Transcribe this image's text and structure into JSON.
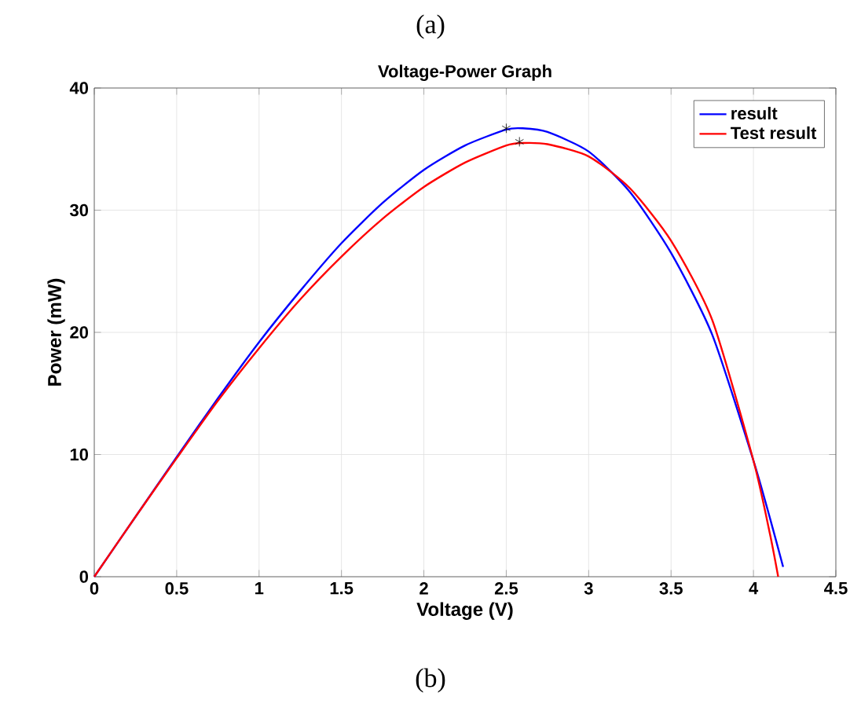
{
  "chart_data": {
    "type": "line",
    "title": "Voltage-Power Graph",
    "xlabel": "Voltage (V)",
    "ylabel": "Power (mW)",
    "annotations": [
      "(a)",
      "(b)"
    ],
    "xlim": [
      0,
      4.5
    ],
    "xticks": [
      0,
      0.5,
      1,
      1.5,
      2,
      2.5,
      3,
      3.5,
      4,
      4.5
    ],
    "ylim": [
      0,
      40
    ],
    "yticks": [
      0,
      10,
      20,
      30,
      40
    ],
    "grid": true,
    "legend": "top right",
    "series": [
      {
        "name": "result",
        "color": "#0000ff",
        "x": [
          0,
          0.25,
          0.5,
          0.75,
          1,
          1.25,
          1.5,
          1.75,
          2,
          2.25,
          2.5,
          2.6,
          2.75,
          3,
          3.25,
          3.5,
          3.75,
          4,
          4.1,
          4.18
        ],
        "values": [
          0,
          4.9,
          9.8,
          14.6,
          19.2,
          23.4,
          27.3,
          30.6,
          33.3,
          35.3,
          36.6,
          36.7,
          36.4,
          34.8,
          31.5,
          26.5,
          19.8,
          9.5,
          4.8,
          0.8
        ]
      },
      {
        "name": "Test result",
        "color": "#ff0000",
        "x": [
          0,
          0.25,
          0.5,
          0.75,
          1,
          1.25,
          1.5,
          1.75,
          2,
          2.25,
          2.5,
          2.6,
          2.75,
          3,
          3.25,
          3.5,
          3.75,
          4,
          4.1,
          4.15
        ],
        "values": [
          0,
          4.9,
          9.7,
          14.4,
          18.7,
          22.7,
          26.2,
          29.3,
          31.9,
          33.9,
          35.3,
          35.5,
          35.4,
          34.4,
          31.8,
          27.5,
          21.0,
          9.5,
          3.5,
          0
        ]
      },
      {
        "type": "scatter",
        "marker": "cross",
        "color": "#000000",
        "x": [
          2.5,
          2.58
        ],
        "values": [
          36.7,
          35.6
        ]
      }
    ]
  }
}
